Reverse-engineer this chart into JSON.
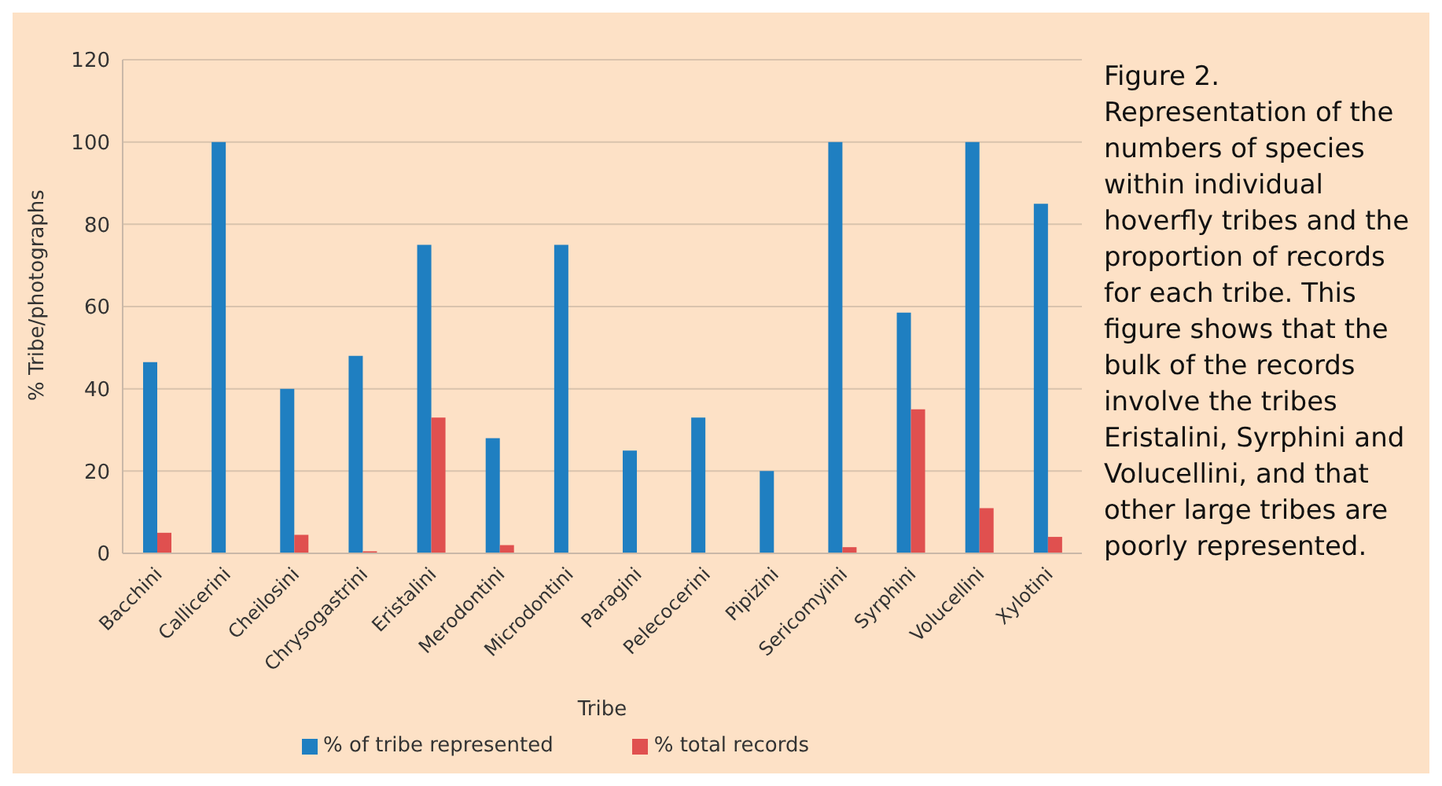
{
  "chart_data": {
    "type": "bar",
    "xlabel": "Tribe",
    "ylabel": "% Tribe/photographs",
    "categories": [
      "Bacchini",
      "Callicerini",
      "Cheilosini",
      "Chrysogastrini",
      "Eristalini",
      "Merodontini",
      "Microdontini",
      "Paragini",
      "Pelecocerini",
      "Pipizini",
      "Sericomyiini",
      "Syrphini",
      "Volucellini",
      "Xylotini"
    ],
    "series": [
      {
        "name": "% of tribe represented",
        "color": "#1f7fc1",
        "values": [
          46.5,
          100,
          40,
          48,
          75,
          28,
          75,
          25,
          33,
          20,
          100,
          58.5,
          100,
          85
        ]
      },
      {
        "name": "% total records",
        "color": "#e0504f",
        "values": [
          5,
          0,
          4.5,
          0.5,
          33,
          2,
          0,
          0,
          0,
          0,
          1.5,
          35,
          11,
          4
        ]
      }
    ],
    "ylim": [
      0,
      120
    ],
    "yticks": [
      0,
      20,
      40,
      60,
      80,
      100,
      120
    ],
    "grid": "y",
    "legend": "bottom",
    "annotations": [
      "Figure 2. Representation of the numbers of species within individual hoverfly tribes and the proportion of records for each tribe. This figure shows that the bulk of the records involve the tribes Eristalini, Syrphini and Volucellini, and that other large tribes are poorly represented."
    ]
  }
}
